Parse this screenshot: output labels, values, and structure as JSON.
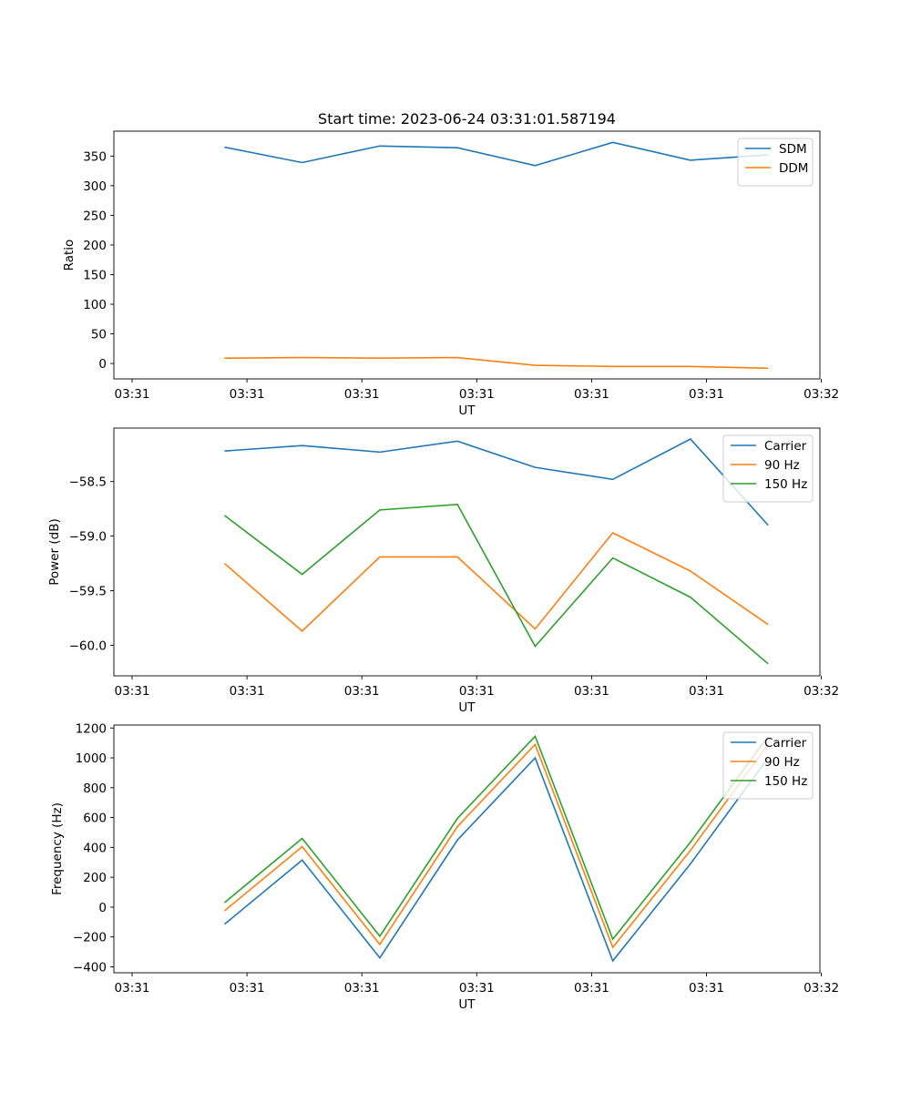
{
  "chart_data": [
    {
      "type": "line",
      "title": "Start time: 2023-06-24 03:31:01.587194",
      "xlabel": "UT",
      "ylabel": "Ratio",
      "x_tick_labels": [
        "03:31",
        "03:31",
        "03:31",
        "03:31",
        "03:31",
        "03:31",
        "03:32"
      ],
      "x": [
        0.47,
        0.8,
        1.13,
        1.46,
        1.79,
        2.12,
        2.45,
        2.78
      ],
      "xlim": [
        0,
        3.0
      ],
      "ylim": [
        -26,
        392
      ],
      "yticks": [
        0,
        50,
        100,
        150,
        200,
        250,
        300,
        350
      ],
      "legend_position": "upper-right",
      "grid": false,
      "series": [
        {
          "name": "SDM",
          "color": "#1f77b4",
          "values": [
            365,
            339,
            367,
            364,
            334,
            373,
            343,
            352
          ]
        },
        {
          "name": "DDM",
          "color": "#ff7f0e",
          "values": [
            9,
            10,
            9,
            10,
            -3,
            -5,
            -5,
            -8
          ]
        }
      ]
    },
    {
      "type": "line",
      "xlabel": "UT",
      "ylabel": "Power (dB)",
      "x_tick_labels": [
        "03:31",
        "03:31",
        "03:31",
        "03:31",
        "03:31",
        "03:31",
        "03:32"
      ],
      "x": [
        0.47,
        0.8,
        1.13,
        1.46,
        1.79,
        2.12,
        2.45,
        2.78
      ],
      "xlim": [
        0,
        3.0
      ],
      "ylim": [
        -60.28,
        -58.01
      ],
      "yticks": [
        -60.0,
        -59.5,
        -59.0,
        -58.5
      ],
      "ytick_labels": [
        "−60.0",
        "−59.5",
        "−59.0",
        "−58.5"
      ],
      "legend_position": "upper-right",
      "grid": false,
      "series": [
        {
          "name": "Carrier",
          "color": "#1f77b4",
          "values": [
            -58.22,
            -58.17,
            -58.23,
            -58.13,
            -58.37,
            -58.48,
            -58.11,
            -58.9
          ]
        },
        {
          "name": "90 Hz",
          "color": "#ff7f0e",
          "values": [
            -59.25,
            -59.87,
            -59.19,
            -59.19,
            -59.85,
            -58.97,
            -59.32,
            -59.81
          ]
        },
        {
          "name": "150 Hz",
          "color": "#2ca02c",
          "values": [
            -58.81,
            -59.35,
            -58.76,
            -58.71,
            -60.01,
            -59.2,
            -59.56,
            -60.17
          ]
        }
      ]
    },
    {
      "type": "line",
      "xlabel": "UT",
      "ylabel": "Frequency (Hz)",
      "x_tick_labels": [
        "03:31",
        "03:31",
        "03:31",
        "03:31",
        "03:31",
        "03:31",
        "03:32"
      ],
      "x": [
        0.47,
        0.8,
        1.13,
        1.46,
        1.79,
        2.12,
        2.45,
        2.78
      ],
      "xlim": [
        0,
        3.0
      ],
      "ylim": [
        -440,
        1220
      ],
      "yticks": [
        -400,
        -200,
        0,
        200,
        400,
        600,
        800,
        1000,
        1200
      ],
      "ytick_labels": [
        "−400",
        "−200",
        "0",
        "200",
        "400",
        "600",
        "800",
        "1000",
        "1200"
      ],
      "legend_position": "upper-right",
      "grid": false,
      "series": [
        {
          "name": "Carrier",
          "color": "#1f77b4",
          "values": [
            -115,
            315,
            -340,
            450,
            1000,
            -360,
            290,
            1000
          ]
        },
        {
          "name": "90 Hz",
          "color": "#ff7f0e",
          "values": [
            -25,
            405,
            -250,
            540,
            1090,
            -270,
            380,
            1090
          ]
        },
        {
          "name": "150 Hz",
          "color": "#2ca02c",
          "values": [
            30,
            460,
            -195,
            595,
            1145,
            -215,
            435,
            1145
          ]
        }
      ]
    }
  ]
}
